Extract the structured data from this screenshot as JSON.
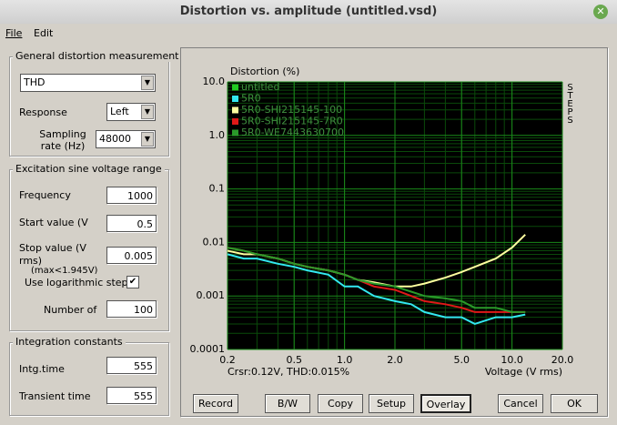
{
  "window": {
    "title": "Distortion vs. amplitude (untitled.vsd)"
  },
  "menu": [
    "File",
    "Edit"
  ],
  "general": {
    "title": "General distortion measurement",
    "measurement": "THD",
    "response_label": "Response",
    "response": "Left",
    "sampling_label": "Sampling rate (Hz)",
    "sampling": 48000
  },
  "excitation": {
    "title": "Excitation sine voltage range",
    "frequency_label": "Frequency",
    "frequency": 1000,
    "start_label": "Start value (V",
    "start": 0.5,
    "stop_label": "Stop value (V rms)",
    "stop_note": "(max<1.945V)",
    "stop": 0.005,
    "log_steps": "Use logarithmic steps",
    "number_label": "Number of",
    "number": 100
  },
  "integration": {
    "title": "Integration constants",
    "intg_label": "Intg.time",
    "intg": 555,
    "transient_label": "Transient time",
    "transient": 555
  },
  "chart_data": {
    "type": "line",
    "title": "Distortion (%)",
    "xlabel": "Voltage (V rms)",
    "side_label": "STEPS",
    "cursor_text": "Crsr:0.12V, THD:0.015%",
    "log_x": true,
    "log_y": true,
    "grid": true,
    "xlim": [
      0.2,
      20
    ],
    "ylim": [
      0.0001,
      10
    ],
    "xticks": [
      0.2,
      0.5,
      {
        "value": 1,
        "label": "1.0"
      },
      {
        "value": 2,
        "label": "2.0"
      },
      {
        "value": 5,
        "label": "5.0"
      },
      {
        "value": 10,
        "label": "10.0"
      },
      {
        "value": 20,
        "label": "20.0"
      }
    ],
    "yticks": [
      {
        "value": 10,
        "label": "10.0"
      },
      {
        "value": 1,
        "label": "1.0"
      },
      0.1,
      0.01,
      0.001,
      0.0001
    ],
    "x": [
      0.2,
      0.25,
      0.3,
      0.4,
      0.5,
      0.6,
      0.8,
      1.0,
      1.2,
      1.5,
      2.0,
      2.5,
      3.0,
      4.0,
      5.0,
      6.0,
      8.0,
      10.0,
      12.0
    ],
    "series": [
      {
        "name": "untitled",
        "color": "#22cc22"
      },
      {
        "name": "5R0",
        "color": "#33e8f0",
        "values": [
          0.006,
          0.005,
          0.005,
          0.004,
          0.0035,
          0.003,
          0.0025,
          0.0015,
          0.0015,
          0.001,
          0.0008,
          0.0007,
          0.0005,
          0.0004,
          0.0004,
          0.0003,
          0.0004,
          0.0004,
          0.00045
        ]
      },
      {
        "name": "5R0-SHI215145-100",
        "color": "#ffffa0",
        "values": [
          0.007,
          0.006,
          0.006,
          0.005,
          0.004,
          0.0035,
          0.003,
          0.0025,
          0.002,
          0.0018,
          0.0015,
          0.0015,
          0.0017,
          0.0022,
          0.0028,
          0.0035,
          0.005,
          0.008,
          0.014
        ]
      },
      {
        "name": "5R0-SHI215145-7R0",
        "color": "#e01818",
        "values": [
          0.008,
          0.007,
          0.006,
          0.005,
          0.004,
          0.0035,
          0.003,
          0.0025,
          0.002,
          0.0015,
          0.0013,
          0.001,
          0.0008,
          0.0007,
          0.0006,
          0.0005,
          0.0005,
          0.0005,
          0.0005
        ]
      },
      {
        "name": "5R0-WE7443630700",
        "color": "#2a9a2a",
        "values": [
          0.008,
          0.007,
          0.006,
          0.005,
          0.004,
          0.0035,
          0.003,
          0.0025,
          0.002,
          0.0017,
          0.0015,
          0.0012,
          0.001,
          0.0009,
          0.0008,
          0.0006,
          0.0006,
          0.0005,
          0.0005
        ]
      }
    ]
  },
  "buttons": [
    "Record",
    "B/W",
    "Copy",
    "Setup",
    "Overlay",
    "Cancel",
    "OK"
  ]
}
